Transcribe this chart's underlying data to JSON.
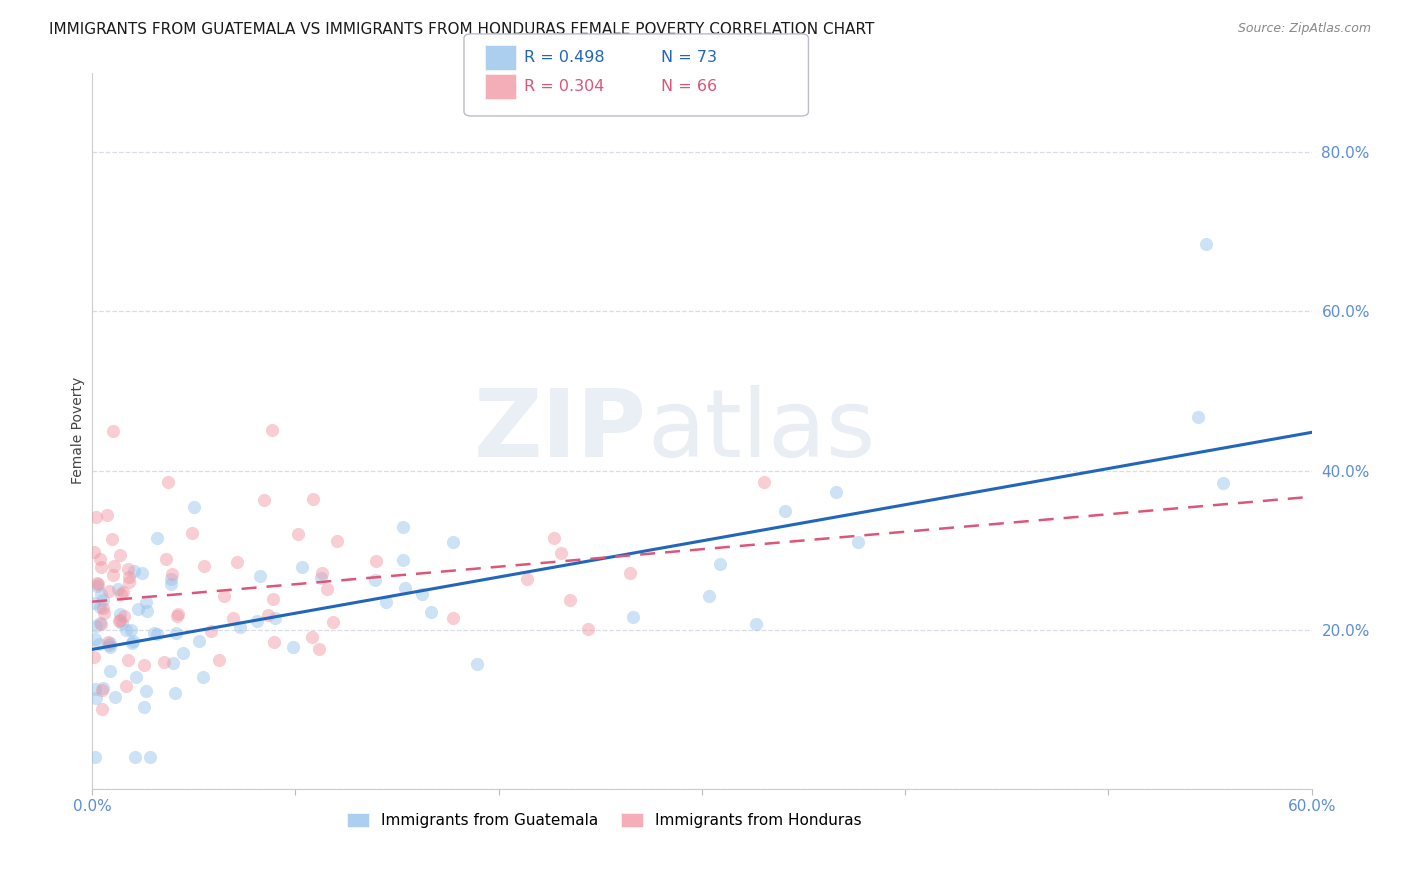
{
  "title": "IMMIGRANTS FROM GUATEMALA VS IMMIGRANTS FROM HONDURAS FEMALE POVERTY CORRELATION CHART",
  "source": "Source: ZipAtlas.com",
  "ylabel": "Female Poverty",
  "xlim": [
    0.0,
    0.6
  ],
  "ylim": [
    0.0,
    0.9
  ],
  "xtick_labels": [
    "0.0%",
    "",
    "",
    "",
    "",
    "",
    "60.0%"
  ],
  "ytick_labels": [
    "",
    "20.0%",
    "40.0%",
    "60.0%",
    "80.0%"
  ],
  "guatemala_color": "#92c0ea",
  "honduras_color": "#f093a0",
  "guatemala_line_color": "#2266bb",
  "honduras_line_color": "#dd5577",
  "R_guatemala": 0.498,
  "N_guatemala": 73,
  "R_honduras": 0.304,
  "N_honduras": 66,
  "legend_label_guatemala": "Immigrants from Guatemala",
  "legend_label_honduras": "Immigrants from Honduras",
  "watermark_zip": "ZIP",
  "watermark_atlas": "atlas",
  "background_color": "#ffffff",
  "grid_color": "#d8dde8",
  "title_fontsize": 11,
  "axis_label_fontsize": 10,
  "tick_fontsize": 11,
  "scatter_alpha": 0.45,
  "scatter_size": 90,
  "guatemala_line_intercept": 0.175,
  "guatemala_line_slope": 0.455,
  "honduras_line_intercept": 0.235,
  "honduras_line_slope": 0.22
}
